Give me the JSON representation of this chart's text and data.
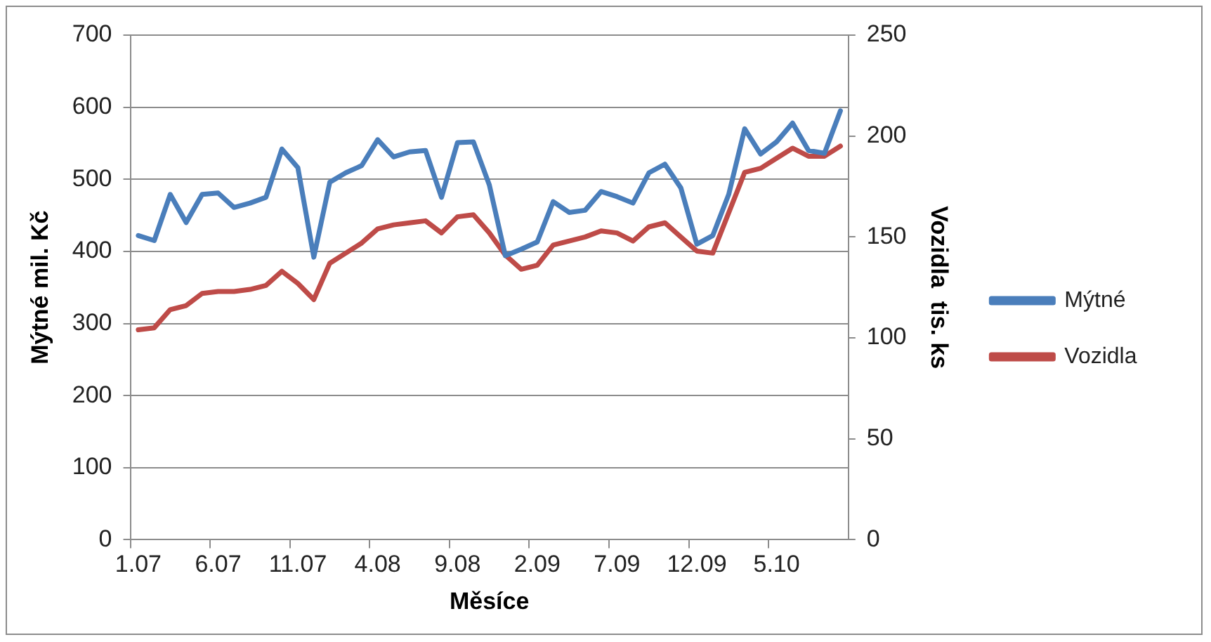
{
  "chart_data": {
    "type": "line",
    "xlabel": "Měsíce",
    "ylabel": "Mýtné mil. Kč",
    "y2label": "Vozidla  tis. ks",
    "categories": [
      "1.07",
      null,
      null,
      null,
      null,
      "6.07",
      null,
      null,
      null,
      null,
      "11.07",
      null,
      null,
      null,
      null,
      "4.08",
      null,
      null,
      null,
      null,
      "9.08",
      null,
      null,
      null,
      null,
      "2.09",
      null,
      null,
      null,
      null,
      "7.09",
      null,
      null,
      null,
      null,
      "12.09",
      null,
      null,
      null,
      null,
      "5.10",
      null,
      null,
      null,
      null
    ],
    "series": [
      {
        "name": "Mýtné",
        "color": "#4a7ebb",
        "values": [
          422,
          415,
          479,
          440,
          479,
          481,
          461,
          467,
          475,
          542,
          516,
          392,
          496,
          509,
          519,
          555,
          531,
          538,
          540,
          475,
          551,
          552,
          492,
          394,
          403,
          413,
          469,
          454,
          457,
          483,
          476,
          467,
          509,
          521,
          488,
          410,
          422,
          479,
          570,
          535,
          552,
          578,
          540,
          536,
          595
        ]
      },
      {
        "name": "Vozidla",
        "color": "#be4b48",
        "axis": "y2",
        "values": [
          104,
          105,
          114,
          116,
          122,
          123,
          123,
          124,
          126,
          133,
          127,
          119,
          137,
          142,
          147,
          154,
          156,
          157,
          158,
          152,
          160,
          161,
          152,
          141,
          134,
          136,
          146,
          148,
          150,
          153,
          152,
          148,
          155,
          157,
          150,
          143,
          142,
          162,
          182,
          184,
          189,
          194,
          190,
          190,
          195
        ]
      }
    ],
    "ylim": [
      0,
      700
    ],
    "yticks": [
      0,
      100,
      200,
      300,
      400,
      500,
      600,
      700
    ],
    "y2lim": [
      0,
      250
    ],
    "y2ticks": [
      0,
      50,
      100,
      150,
      200,
      250
    ],
    "grid": "y",
    "legend": "right",
    "marker": "none",
    "line_style": "solid"
  }
}
